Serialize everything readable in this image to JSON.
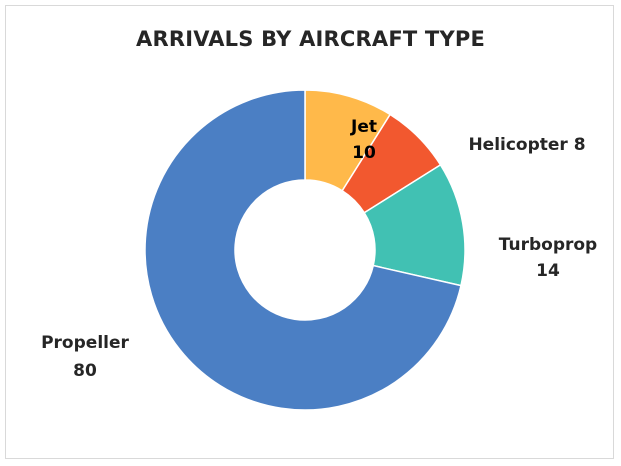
{
  "chart_data": {
    "type": "pie",
    "style": "donut",
    "title": "ARRIVALS BY AIRCRAFT TYPE",
    "categories": [
      "Jet",
      "Helicopter",
      "Turboprop",
      "Propeller"
    ],
    "values": [
      10,
      8,
      14,
      80
    ],
    "colors": [
      "#FFB94A",
      "#F2582F",
      "#41C1B3",
      "#4B7FC4"
    ],
    "labels": [
      {
        "lines": [
          "Jet",
          "10"
        ]
      },
      {
        "lines": [
          "Helicopter 8"
        ]
      },
      {
        "lines": [
          "Turboprop",
          "14"
        ]
      },
      {
        "lines": [
          "Propeller",
          "80"
        ]
      }
    ],
    "legend": "none"
  }
}
